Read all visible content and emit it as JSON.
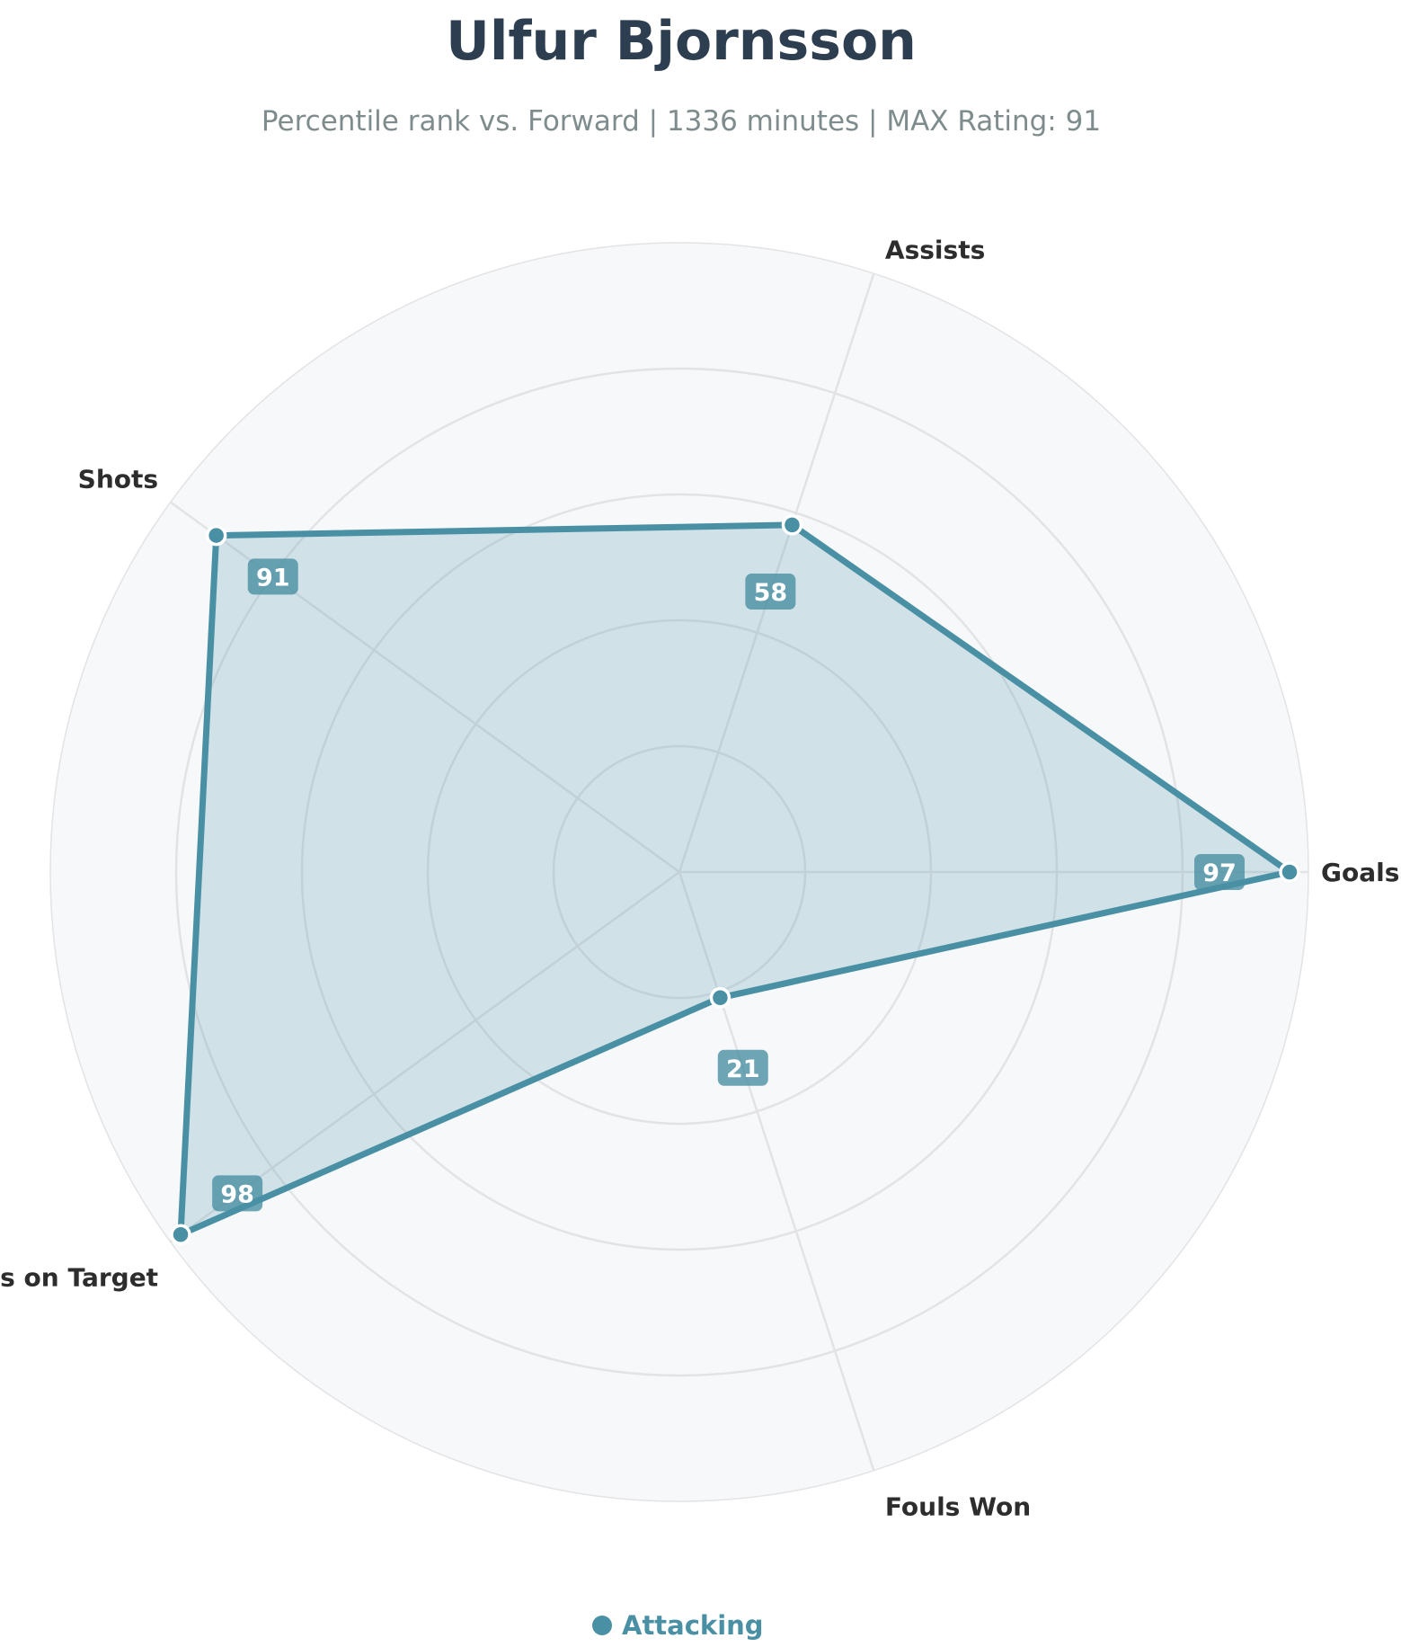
{
  "chart_data": {
    "type": "radar",
    "title": "Ulfur Bjornsson",
    "subtitle": "Percentile rank vs. Forward | 1336 minutes | MAX Rating: 91",
    "categories": [
      "Goals",
      "Assists",
      "Shots",
      "Shots on Target",
      "Fouls Won"
    ],
    "series": [
      {
        "name": "Attacking",
        "values": [
          97,
          58,
          91,
          98,
          21
        ]
      }
    ],
    "rlim": [
      0,
      100
    ],
    "rings": [
      20,
      40,
      60,
      80,
      100
    ],
    "grid": true,
    "legend_position": "bottom-center"
  },
  "colors": {
    "series": "#4a90a4",
    "title": "#2c3e50",
    "subtitle": "#7f8c8d",
    "labels": "#2d2d2d",
    "panel": "#f7f8fa",
    "grid": "#e3e3e6"
  }
}
